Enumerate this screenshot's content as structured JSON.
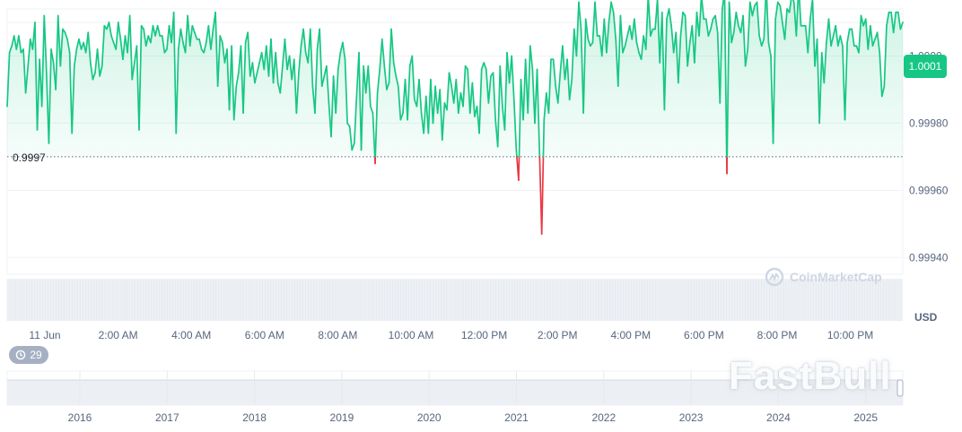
{
  "chart_data": {
    "type": "line",
    "y_axis": {
      "ticks": [
        1.0001,
        1.0,
        0.9998,
        0.9996,
        0.9994
      ],
      "tick_labels": [
        "1.0001",
        "1.0000",
        "0.99980",
        "0.99960",
        "0.99940"
      ],
      "range": [
        0.99935,
        1.00014
      ],
      "unit": "USD"
    },
    "x_axis": {
      "tick_labels": [
        "11 Jun",
        "2:00 AM",
        "4:00 AM",
        "6:00 AM",
        "8:00 AM",
        "10:00 AM",
        "12:00 PM",
        "2:00 PM",
        "4:00 PM",
        "6:00 PM",
        "8:00 PM",
        "10:00 PM"
      ]
    },
    "baseline": {
      "value": 0.9997,
      "label": "0.9997"
    },
    "current": {
      "value": 1.0001,
      "label": "1.0001"
    },
    "colors": {
      "up": "#16c784",
      "down": "#ea3943",
      "area": "#16c784",
      "badge": "#16c784"
    },
    "series": [
      {
        "values": [
          0.99985,
          1.00001,
          1.00003,
          1.00006,
          1.00002,
          1.00006,
          1.00001,
          1.00002,
          0.99989,
          0.99997,
          1.00005,
          1.00002,
          1.0001,
          0.99978,
          0.99999,
          0.99985,
          1.00012,
          0.99995,
          0.99974,
          1.00002,
          0.99998,
          0.9999,
          1.00012,
          0.99997,
          1.00008,
          1.00007,
          1.00005,
          1.00001,
          0.99977,
          0.99997,
          1.00002,
          1.00005,
          1.00002,
          1.00004,
          1.00001,
          1.00007,
          0.99998,
          0.99993,
          0.99995,
          1.00002,
          0.99994,
          0.99997,
          1.00009,
          1.00008,
          1.0001,
          1.00006,
          1.00004,
          1.00002,
          1.0001,
          1.00005,
          0.99999,
          1.00006,
          1.00001,
          1.00012,
          0.99993,
          0.99998,
          1.00003,
          0.99978,
          1.00009,
          1.00008,
          1.00003,
          1.00006,
          1.00004,
          1.00009,
          1.00006,
          1.00009,
          1.00006,
          1.00006,
          1.00001,
          1.00002,
          1.00009,
          1.00004,
          1.00013,
          0.99977,
          1.00002,
          1.00008,
          1.00004,
          1.00001,
          1.00012,
          1.00003,
          1.00009,
          1.00007,
          1.00005,
          1.00005,
          1.00002,
          1.00001,
          1.00004,
          1.00009,
          1.00002,
          1.00008,
          1.00013,
          0.99991,
          1.00006,
          1.00004,
          0.99998,
          1.00002,
          0.99984,
          1.00003,
          0.99981,
          0.99991,
          0.99995,
          1.00003,
          0.99983,
          1.00004,
          1.00007,
          0.99994,
          0.99998,
          0.99992,
          0.99995,
          0.99998,
          1.00001,
          0.99996,
          1.00003,
          0.99994,
          1.00005,
          0.99992,
          1.00001,
          0.99992,
          0.99989,
          0.99997,
          1.00005,
          0.99996,
          1.0,
          0.99993,
          0.99999,
          0.99983,
          0.99995,
          1.00003,
          1.00008,
          1.00001,
          0.99998,
          1.00008,
          0.99991,
          0.99983,
          1.00002,
          1.00008,
          0.99991,
          0.99994,
          0.99997,
          0.99986,
          0.99976,
          0.99994,
          0.99983,
          0.99996,
          1.00001,
          1.00004,
          0.99999,
          0.9998,
          0.99979,
          0.99972,
          0.99974,
          0.99988,
          1.00001,
          0.99972,
          0.99997,
          0.99989,
          0.99997,
          0.99985,
          0.99983,
          0.99968,
          0.99989,
          0.99996,
          1.00005,
          0.99997,
          0.9999,
          0.99992,
          1.00008,
          0.99998,
          0.99994,
          0.99991,
          0.99981,
          0.99983,
          0.99993,
          0.99981,
          0.99997,
          1.0,
          0.99987,
          0.99985,
          0.99993,
          0.99983,
          0.99977,
          0.99988,
          0.99977,
          0.99993,
          0.9998,
          0.99991,
          0.99983,
          0.9999,
          0.99975,
          0.99986,
          0.99984,
          0.99995,
          0.99991,
          0.99986,
          0.99993,
          0.99983,
          0.99989,
          0.99985,
          0.99997,
          0.99996,
          0.99983,
          0.99992,
          0.99982,
          0.99985,
          0.99977,
          0.99996,
          0.99998,
          0.99996,
          0.99986,
          0.99994,
          0.99995,
          0.99981,
          0.99973,
          0.99997,
          0.99985,
          0.99978,
          1.00001,
          0.99992,
          1.0,
          0.99987,
          0.99972,
          0.99963,
          0.99993,
          0.99981,
          0.99999,
          0.99983,
          1.00003,
          0.99996,
          0.9998,
          0.99996,
          0.99972,
          0.99947,
          0.99981,
          0.99989,
          0.99983,
          0.99999,
          0.99999,
          0.99991,
          0.99986,
          0.99995,
          1.00003,
          0.99993,
          0.99999,
          0.99987,
          0.99993,
          1.00008,
          1.0,
          1.00016,
          1.00008,
          0.99983,
          1.00011,
          1.00005,
          1.00003,
          1.00004,
          1.00016,
          1.00006,
          1.00006,
          1.0,
          1.00011,
          1.00001,
          1.0001,
          1.00016,
          1.00013,
          1.00005,
          0.99991,
          1.00012,
          1.00001,
          1.00003,
          1.00006,
          1.00009,
          1.00005,
          1.00011,
          1.00004,
          1.00001,
          0.99999,
          1.00006,
          1.00002,
          1.00018,
          1.00006,
          1.00008,
          1.00008,
          1.00017,
          0.99998,
          1.00013,
          0.99984,
          1.00011,
          1.00014,
          1.00009,
          1.00001,
          1.00007,
          0.99992,
          1.00006,
          1.00013,
          1.00012,
          0.99997,
          1.00004,
          1.00009,
          0.99998,
          1.00013,
          1.00006,
          1.00018,
          1.00011,
          1.00011,
          1.00006,
          1.00008,
          1.00011,
          1.00012,
          1.00007,
          0.99986,
          1.00014,
          1.00019,
          0.99965,
          1.00016,
          1.00004,
          1.00007,
          1.00013,
          1.00009,
          1.00007,
          1.00012,
          0.99997,
          1.00002,
          1.00016,
          1.00012,
          1.00015,
          1.00016,
          1.00006,
          1.00003,
          1.00005,
          1.00021,
          1.00004,
          1.0,
          0.99974,
          1.00011,
          1.00016,
          1.00015,
          1.0001,
          1.00005,
          1.00014,
          1.00013,
          1.00018,
          1.00016,
          1.00006,
          1.00021,
          1.00009,
          1.00009,
          1.00009,
          1.00001,
          1.00011,
          1.00017,
          0.99997,
          1.00005,
          0.9998,
          1.00001,
          0.99992,
          1.00004,
          1.00011,
          1.00003,
          1.00006,
          1.00009,
          1.00003,
          1.00006,
          1.00003,
          0.99981,
          1.00004,
          1.00008,
          1.00008,
          1.00003,
          1.00003,
          1.00001,
          1.00012,
          1.00009,
          1.00011,
          1.00002,
          1.00009,
          1.00003,
          1.00005,
          1.00007,
          1.00001,
          0.99988,
          0.99991,
          1.00009,
          1.00013,
          1.00013,
          1.00007,
          1.00013,
          1.00013,
          1.00008,
          1.0001
        ]
      }
    ],
    "volume_strip": true,
    "navigator": {
      "tick_labels": [
        "2016",
        "2017",
        "2018",
        "2019",
        "2020",
        "2021",
        "2022",
        "2023",
        "2024",
        "2025"
      ]
    },
    "grid": true,
    "legend": "none"
  },
  "ui": {
    "history_count": "29",
    "brand": "CoinMarketCap",
    "watermark": "FastBull",
    "icons": {
      "history": "history-clock-icon",
      "logo": "coinmarketcap-logo-icon"
    }
  }
}
